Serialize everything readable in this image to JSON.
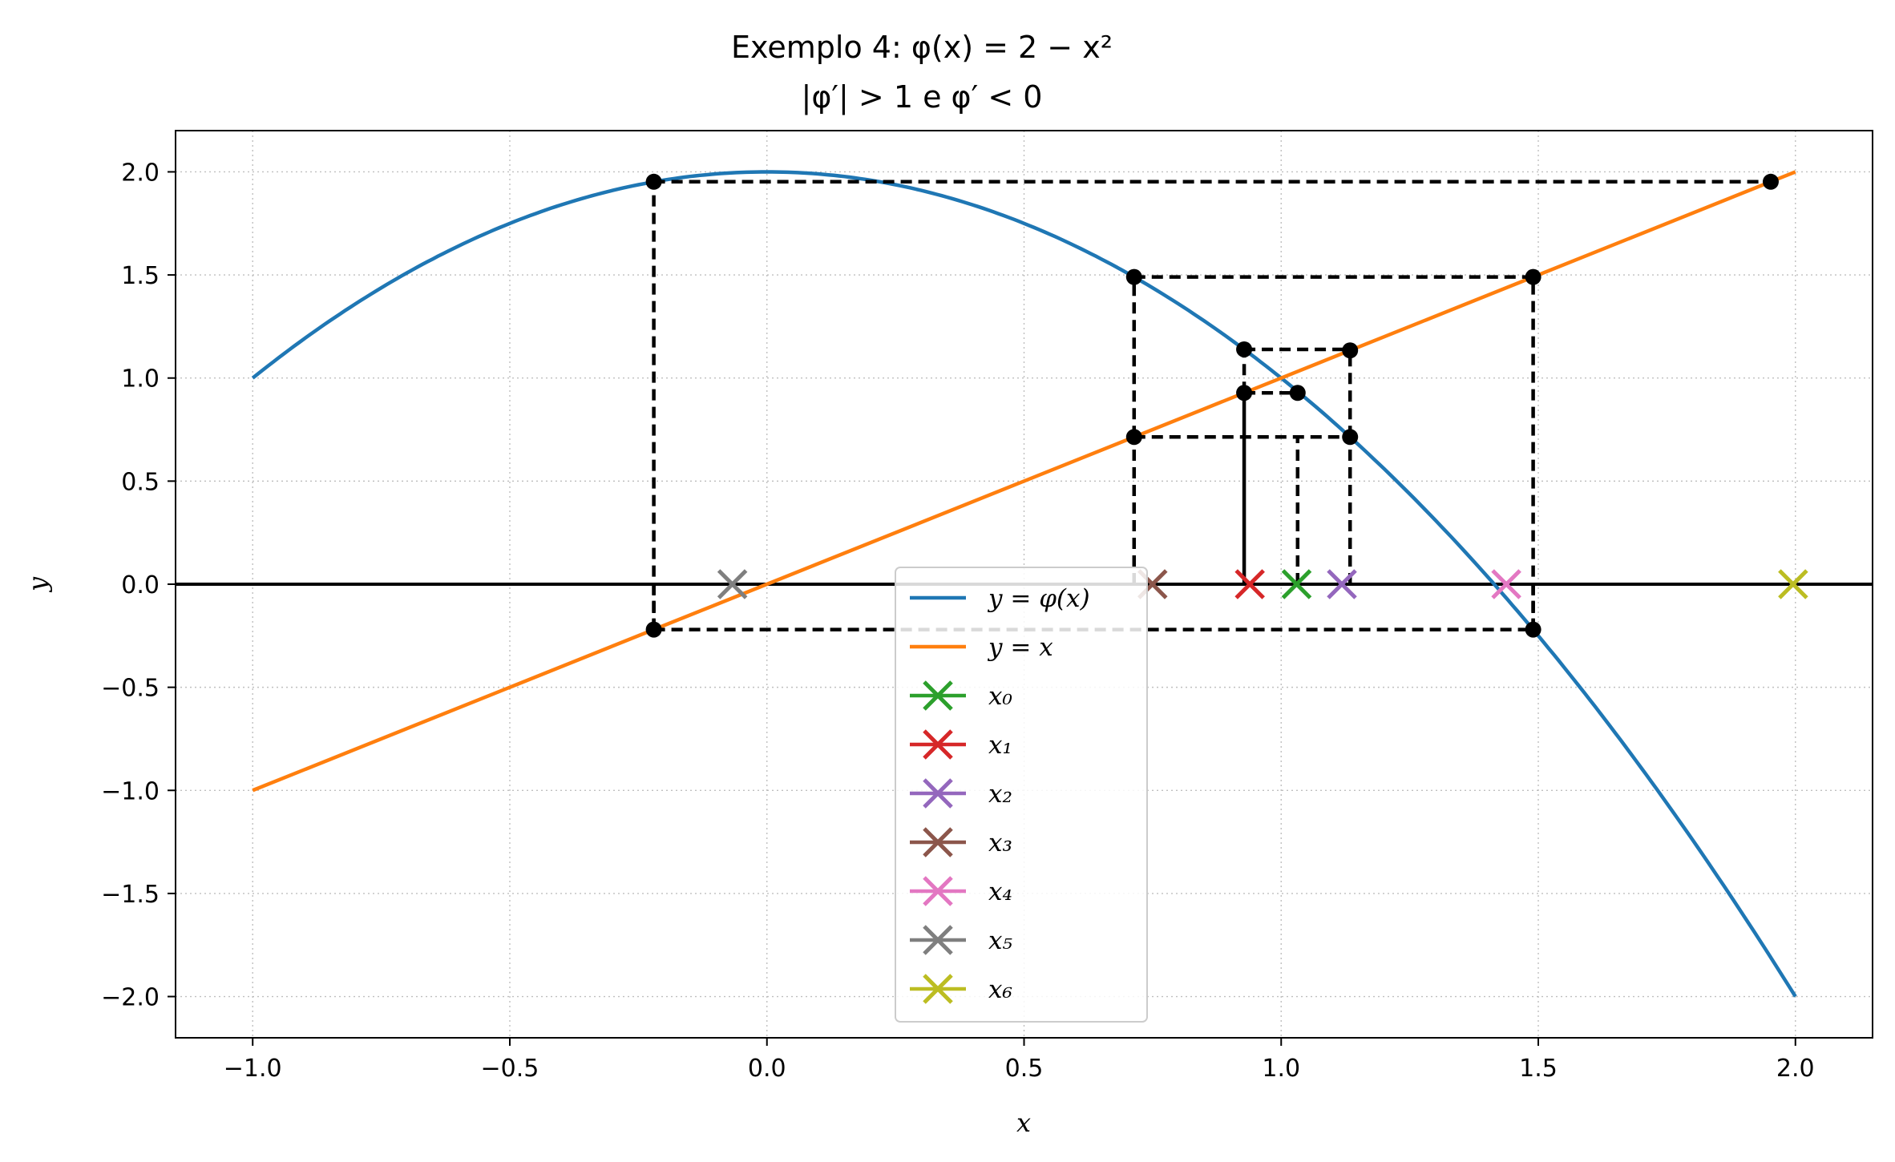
{
  "chart_data": {
    "type": "line",
    "title": "Exemplo 4: φ(x) = 2 − x²",
    "subtitle": "|φ′| > 1 e φ′ < 0",
    "xlabel": "x",
    "ylabel": "y",
    "xlim": [
      -1.15,
      2.15
    ],
    "ylim": [
      -2.2,
      2.2
    ],
    "grid": true,
    "legend_position": "lower-center",
    "x_ticks": [
      "−1.0",
      "−0.5",
      "0.0",
      "0.5",
      "1.0",
      "1.5",
      "2.0"
    ],
    "x_tick_values": [
      -1.0,
      -0.5,
      0.0,
      0.5,
      1.0,
      1.5,
      2.0
    ],
    "y_ticks": [
      "2.0",
      "1.5",
      "1.0",
      "0.5",
      "0.0",
      "−0.5",
      "−1.0",
      "−1.5",
      "−2.0"
    ],
    "y_tick_values": [
      2.0,
      1.5,
      1.0,
      0.5,
      0.0,
      -0.5,
      -1.0,
      -1.5,
      -2.0
    ],
    "curves": [
      {
        "name": "y = φ(x)",
        "color": "#1f77b4",
        "function": "2 - x^2",
        "x_range": [
          -1.0,
          2.0
        ]
      },
      {
        "name": "y = x",
        "color": "#ff7f0e",
        "function": "x",
        "x_range": [
          -1.0,
          2.0
        ]
      }
    ],
    "iterates": [
      {
        "name": "x₀",
        "x": 1.03,
        "color": "#2ca02c"
      },
      {
        "name": "x₁",
        "x": 0.9391,
        "color": "#d62728"
      },
      {
        "name": "x₂",
        "x": 1.1181,
        "color": "#9467bd"
      },
      {
        "name": "x₃",
        "x": 0.7498,
        "color": "#8c564b"
      },
      {
        "name": "x₄",
        "x": 1.4378,
        "color": "#e377c2"
      },
      {
        "name": "x₅",
        "x": -0.0672,
        "color": "#7f7f7f"
      },
      {
        "name": "x₆",
        "x": 1.9955,
        "color": "#bcbd22"
      }
    ],
    "cobweb_dots": [
      [
        0.928,
        1.139
      ],
      [
        0.928,
        0.928
      ],
      [
        1.134,
        0.714
      ],
      [
        1.134,
        1.134
      ],
      [
        0.714,
        1.49
      ],
      [
        0.714,
        0.714
      ],
      [
        1.49,
        -0.22
      ],
      [
        1.49,
        1.49
      ],
      [
        -0.22,
        1.952
      ],
      [
        -0.22,
        -0.22
      ],
      [
        1.952,
        1.952
      ],
      [
        1.032,
        0.928
      ]
    ]
  },
  "legend": {
    "items": [
      {
        "label": "y = φ(x)",
        "kind": "line",
        "color": "#1f77b4"
      },
      {
        "label": "y = x",
        "kind": "line",
        "color": "#ff7f0e"
      },
      {
        "label": "x₀",
        "kind": "cross",
        "color": "#2ca02c"
      },
      {
        "label": "x₁",
        "kind": "cross",
        "color": "#d62728"
      },
      {
        "label": "x₂",
        "kind": "cross",
        "color": "#9467bd"
      },
      {
        "label": "x₃",
        "kind": "cross",
        "color": "#8c564b"
      },
      {
        "label": "x₄",
        "kind": "cross",
        "color": "#e377c2"
      },
      {
        "label": "x₅",
        "kind": "cross",
        "color": "#7f7f7f"
      },
      {
        "label": "x₆",
        "kind": "cross",
        "color": "#bcbd22"
      }
    ]
  }
}
